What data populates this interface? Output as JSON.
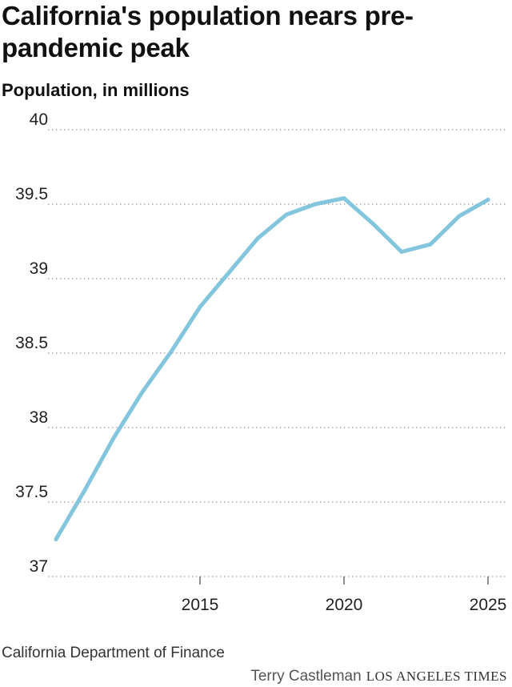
{
  "title": "California's population nears pre-pandemic peak",
  "subtitle": "Population, in millions",
  "source": "California Department of Finance",
  "byline": "Terry Castleman",
  "masthead": "LOS ANGELES TIMES",
  "colors": {
    "line": "#82c5dd",
    "grid": "#999999",
    "axis": "#555555",
    "text": "#222222"
  },
  "chart_data": {
    "type": "line",
    "title": "California's population nears pre-pandemic peak",
    "ylabel": "Population, in millions",
    "xlabel": "",
    "x": [
      2010,
      2011,
      2012,
      2013,
      2014,
      2015,
      2016,
      2017,
      2018,
      2019,
      2020,
      2021,
      2022,
      2023,
      2024,
      2025
    ],
    "series": [
      {
        "values": [
          37.25,
          37.58,
          37.93,
          38.24,
          38.51,
          38.81,
          39.04,
          39.27,
          39.43,
          39.5,
          39.54,
          39.37,
          39.18,
          39.23,
          39.42,
          39.53
        ]
      }
    ],
    "ylim": [
      37,
      40
    ],
    "yticks": [
      "37",
      "37.5",
      "38",
      "38.5",
      "39",
      "39.5",
      "40"
    ],
    "xticks": [
      "2015",
      "2020",
      "2025"
    ],
    "grid": true,
    "legend": "none"
  }
}
